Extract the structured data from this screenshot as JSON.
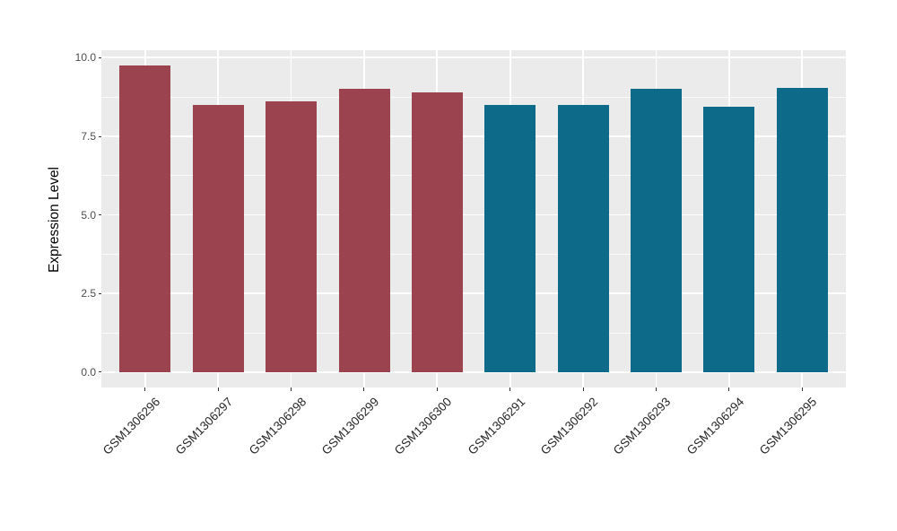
{
  "chart_data": {
    "type": "bar",
    "title": "",
    "xlabel": "",
    "ylabel": "Expression Level",
    "categories": [
      "GSM1306296",
      "GSM1306297",
      "GSM1306298",
      "GSM1306299",
      "GSM1306300",
      "GSM1306291",
      "GSM1306292",
      "GSM1306293",
      "GSM1306294",
      "GSM1306295"
    ],
    "values": [
      9.75,
      8.5,
      8.6,
      9.0,
      8.9,
      8.5,
      8.5,
      9.0,
      8.45,
      9.05
    ],
    "bar_colors": [
      "#9B4450",
      "#9B4450",
      "#9B4450",
      "#9B4450",
      "#9B4450",
      "#0D6A89",
      "#0D6A89",
      "#0D6A89",
      "#0D6A89",
      "#0D6A89"
    ],
    "ylim": [
      0,
      10
    ],
    "yticks": [
      0,
      2.5,
      5,
      7.5,
      10
    ],
    "ytick_labels": [
      "0.0",
      "2.5",
      "5.0",
      "7.5",
      "10.0"
    ],
    "grid": true,
    "legend_position": "none",
    "panel_background": "#EBEBEB",
    "grid_color": "#FFFFFF",
    "tick_color": "#333333",
    "bar_width_fraction": 0.7,
    "x_tick_label_rotation_deg": 45
  }
}
